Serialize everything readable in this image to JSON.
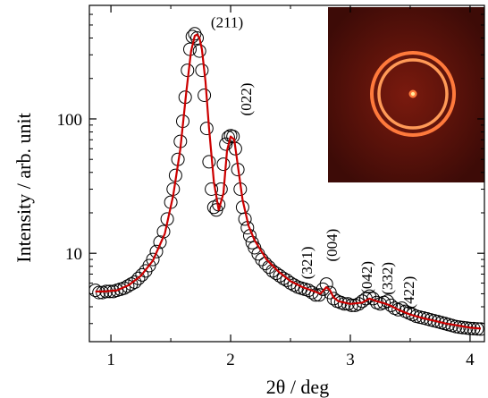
{
  "chart_data": {
    "type": "scatter",
    "title": "",
    "xlabel": "2θ / deg",
    "ylabel": "Intensity / arb. unit",
    "xlim": [
      0.82,
      4.12
    ],
    "ylim": [
      2.2,
      700
    ],
    "yscale": "log",
    "xticks": [
      1,
      2,
      3,
      4
    ],
    "xtick_labels": [
      "1",
      "2",
      "3",
      "4"
    ],
    "yticks": [
      10,
      100
    ],
    "ytick_labels": [
      "10",
      "100"
    ],
    "grid": false,
    "legend": "none",
    "series": [
      {
        "kind": "markers",
        "marker": "open-circle",
        "color": "#000000",
        "x": [
          0.87,
          0.9,
          0.93,
          0.96,
          0.99,
          1.02,
          1.05,
          1.08,
          1.11,
          1.14,
          1.17,
          1.2,
          1.23,
          1.26,
          1.29,
          1.32,
          1.35,
          1.38,
          1.41,
          1.44,
          1.47,
          1.5,
          1.52,
          1.54,
          1.56,
          1.58,
          1.6,
          1.62,
          1.64,
          1.66,
          1.68,
          1.7,
          1.72,
          1.74,
          1.76,
          1.78,
          1.8,
          1.82,
          1.84,
          1.86,
          1.88,
          1.9,
          1.92,
          1.94,
          1.96,
          1.98,
          2.0,
          2.02,
          2.04,
          2.06,
          2.08,
          2.1,
          2.12,
          2.14,
          2.16,
          2.18,
          2.2,
          2.23,
          2.26,
          2.29,
          2.32,
          2.35,
          2.38,
          2.41,
          2.44,
          2.47,
          2.5,
          2.53,
          2.56,
          2.59,
          2.62,
          2.65,
          2.68,
          2.71,
          2.74,
          2.77,
          2.8,
          2.83,
          2.86,
          2.89,
          2.92,
          2.95,
          2.98,
          3.01,
          3.04,
          3.07,
          3.1,
          3.13,
          3.16,
          3.19,
          3.22,
          3.25,
          3.28,
          3.31,
          3.34,
          3.37,
          3.4,
          3.43,
          3.46,
          3.49,
          3.52,
          3.55,
          3.58,
          3.61,
          3.64,
          3.67,
          3.7,
          3.73,
          3.76,
          3.79,
          3.82,
          3.85,
          3.88,
          3.91,
          3.94,
          3.97,
          4.0,
          4.03,
          4.06,
          4.09
        ],
        "y": [
          5.3,
          5.1,
          5.1,
          5.2,
          5.2,
          5.2,
          5.3,
          5.4,
          5.5,
          5.7,
          5.9,
          6.1,
          6.5,
          6.9,
          7.4,
          8.1,
          9,
          10.3,
          12.1,
          14.5,
          18,
          24,
          30,
          38,
          50,
          68,
          96,
          145,
          230,
          330,
          410,
          430,
          400,
          320,
          230,
          150,
          85,
          48,
          30,
          22,
          21,
          23,
          30,
          46,
          65,
          73,
          75,
          74,
          60,
          42,
          30,
          22,
          18,
          15.5,
          13.5,
          12,
          11,
          9.9,
          9,
          8.4,
          7.9,
          7.4,
          7.1,
          6.8,
          6.5,
          6.3,
          6,
          5.8,
          5.6,
          5.5,
          5.4,
          5.3,
          5.1,
          4.9,
          4.9,
          5.4,
          5.9,
          5.1,
          4.6,
          4.4,
          4.3,
          4.2,
          4.2,
          4.1,
          4.1,
          4.2,
          4.4,
          4.6,
          4.8,
          4.6,
          4.3,
          4.2,
          4.3,
          4.4,
          4.1,
          3.9,
          3.8,
          3.9,
          3.7,
          3.6,
          3.5,
          3.4,
          3.35,
          3.3,
          3.25,
          3.2,
          3.15,
          3.1,
          3.05,
          3.0,
          2.95,
          2.9,
          2.85,
          2.82,
          2.8,
          2.78,
          2.76,
          2.75,
          2.74,
          2.73
        ]
      },
      {
        "kind": "line",
        "color": "#cc0000",
        "x": [
          0.87,
          0.95,
          1.05,
          1.15,
          1.25,
          1.35,
          1.45,
          1.52,
          1.58,
          1.63,
          1.67,
          1.7,
          1.72,
          1.74,
          1.76,
          1.79,
          1.82,
          1.86,
          1.9,
          1.94,
          1.97,
          2.0,
          2.03,
          2.06,
          2.1,
          2.15,
          2.2,
          2.3,
          2.4,
          2.5,
          2.6,
          2.7,
          2.75,
          2.8,
          2.83,
          2.86,
          2.9,
          3.0,
          3.1,
          3.16,
          3.22,
          3.28,
          3.33,
          3.4,
          3.5,
          3.6,
          3.7,
          3.8,
          3.9,
          4.0,
          4.09
        ],
        "y": [
          5.2,
          5.2,
          5.3,
          5.8,
          6.8,
          8.8,
          14,
          27,
          60,
          160,
          320,
          415,
          425,
          400,
          330,
          190,
          85,
          34,
          21,
          28,
          58,
          74,
          70,
          45,
          25,
          16,
          12.5,
          9,
          7.3,
          6.2,
          5.6,
          5.2,
          5.0,
          5.6,
          5.3,
          4.7,
          4.4,
          4.2,
          4.3,
          4.6,
          4.4,
          4.25,
          4.1,
          3.8,
          3.5,
          3.3,
          3.15,
          3.0,
          2.9,
          2.8,
          2.75
        ]
      }
    ],
    "annotations": [
      {
        "text": "(211)",
        "x": 1.97,
        "y": 480,
        "rotation": 0
      },
      {
        "text": "(022)",
        "x": 2.17,
        "y": 140,
        "rotation": -90
      },
      {
        "text": "(321)",
        "x": 2.68,
        "y": 8.5,
        "rotation": -90
      },
      {
        "text": "(004)",
        "x": 2.89,
        "y": 11.5,
        "rotation": -90
      },
      {
        "text": "(042)",
        "x": 3.18,
        "y": 6.6,
        "rotation": -90
      },
      {
        "text": "(332)",
        "x": 3.35,
        "y": 6.5,
        "rotation": -90
      },
      {
        "text": "(422)",
        "x": 3.53,
        "y": 5.1,
        "rotation": -90
      }
    ],
    "inset": {
      "type": "image",
      "description_colors": {
        "background": "#3d0b07",
        "ring_outer": "#ff7a3c",
        "ring_inner": "#ff9a57",
        "center": "#fff0a0"
      }
    }
  }
}
